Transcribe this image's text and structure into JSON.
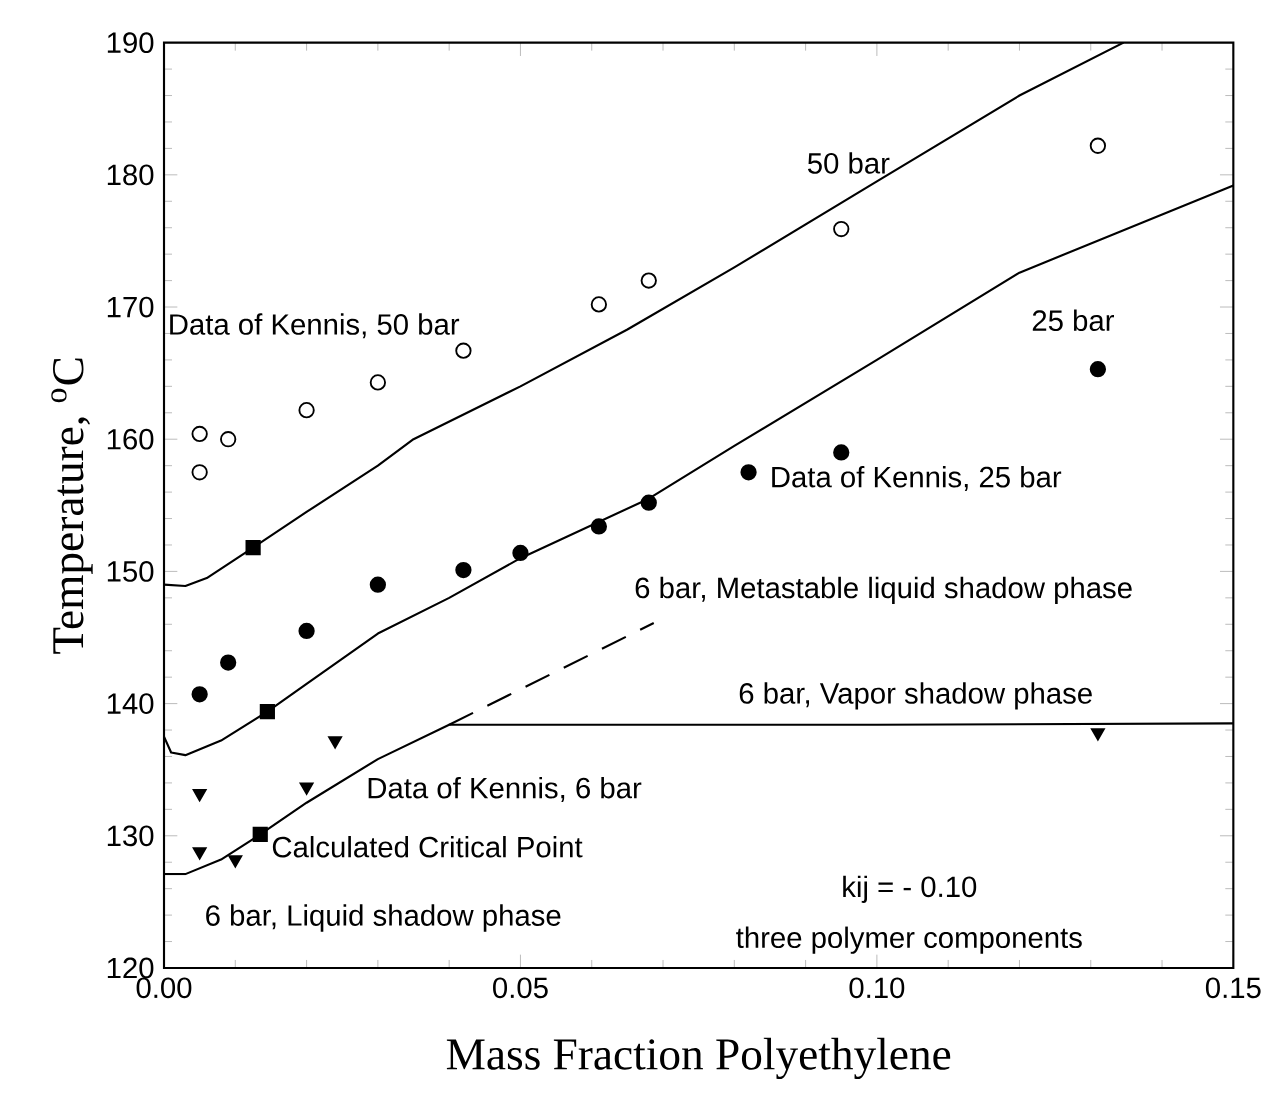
{
  "chart_data": {
    "type": "scatter",
    "xlabel": "Mass Fraction Polyethylene",
    "ylabel": "Temperature, $^{o}$C",
    "xlim": [
      0,
      0.15
    ],
    "ylim": [
      120,
      190
    ],
    "xticks": [
      {
        "value": 0,
        "label": "0.00"
      },
      {
        "value": 0.05,
        "label": "0.05"
      },
      {
        "value": 0.1,
        "label": "0.10"
      },
      {
        "value": 0.15,
        "label": "0.15"
      }
    ],
    "yticks": [
      120,
      130,
      140,
      150,
      160,
      170,
      180,
      190
    ],
    "grid": false,
    "series": [
      {
        "marker": "circle",
        "color": "#ffffff",
        "x": [
          0.005,
          0.005,
          0.009,
          0.02,
          0.03,
          0.042,
          0.061,
          0.068,
          0.095,
          0.131
        ],
        "values": [
          160.4,
          157.5,
          160,
          162.2,
          164.3,
          166.7,
          170.2,
          172,
          175.9,
          182.2
        ]
      },
      {
        "marker": "circle",
        "color": "#000000",
        "x": [
          0.005,
          0.009,
          0.02,
          0.03,
          0.042,
          0.05,
          0.061,
          0.068,
          0.082,
          0.095,
          0.131
        ],
        "values": [
          140.7,
          143.1,
          145.5,
          149,
          150.1,
          151.4,
          153.4,
          155.2,
          157.5,
          159,
          165.3
        ]
      },
      {
        "marker": "triangle-down",
        "color": "#000000",
        "x": [
          0.005,
          0.005,
          0.01,
          0.02,
          0.024,
          0.131
        ],
        "values": [
          133.2,
          128.8,
          128.2,
          133.7,
          137.2,
          137.8
        ]
      },
      {
        "type": "line",
        "line_style": "solid",
        "color": "#000000",
        "x": [
          0.0,
          0.003,
          0.006,
          0.0125,
          0.02,
          0.03,
          0.035,
          0.05,
          0.065,
          0.08,
          0.1,
          0.12,
          0.1346
        ],
        "values": [
          149,
          148.9,
          149.5,
          151.8,
          154.5,
          158,
          160,
          164,
          168.3,
          173,
          179.5,
          186,
          190
        ]
      },
      {
        "type": "line",
        "line_style": "solid",
        "color": "#000000",
        "x": [
          0.0,
          0.001,
          0.003,
          0.008,
          0.0145,
          0.02,
          0.03,
          0.04,
          0.05,
          0.068,
          0.08,
          0.1,
          0.12,
          0.15
        ],
        "values": [
          137.5,
          136.3,
          136.1,
          137.2,
          139.4,
          141.5,
          145.3,
          148,
          151,
          155.5,
          159.5,
          166,
          172.6,
          179.2
        ]
      },
      {
        "type": "line",
        "line_style": "solid",
        "color": "#000000",
        "x": [
          0.0,
          0.003,
          0.008,
          0.0135,
          0.02,
          0.03,
          0.04,
          0.06,
          0.1,
          0.15
        ],
        "values": [
          127.1,
          127.1,
          128.2,
          130.1,
          132.5,
          135.8,
          138.4,
          138.4,
          138.4,
          138.5
        ]
      },
      {
        "type": "line",
        "line_style": "dashed",
        "color": "#000000",
        "x": [
          0.04,
          0.0687
        ],
        "values": [
          138.4,
          146.1
        ]
      },
      {
        "marker": "square",
        "color": "#000000",
        "x": [
          0.0125,
          0.0145,
          0.0135
        ],
        "values": [
          151.8,
          139.4,
          130.1
        ]
      }
    ],
    "annotations": [
      "50 bar",
      "25 bar",
      "Data of Kennis, 50 bar",
      "Data of Kennis, 25 bar",
      "6 bar, Metastable liquid shadow phase",
      "6 bar, Vapor shadow phase",
      "Data of Kennis, 6 bar",
      "Calculated Critical Point",
      "6 bar, Liquid shadow phase",
      "kij = - 0.10",
      "three polymer components"
    ]
  }
}
